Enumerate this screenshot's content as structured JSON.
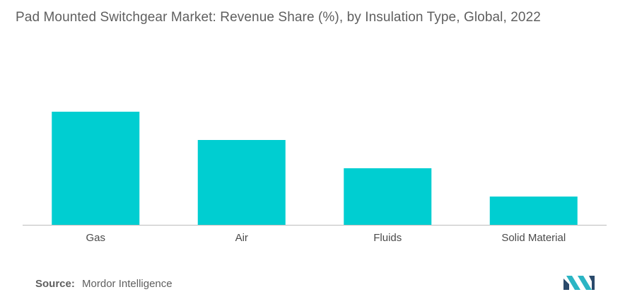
{
  "title": "Pad Mounted Switchgear Market: Revenue Share (%), by Insulation Type, Global, 2022",
  "source": {
    "label": "Source:",
    "value": "Mordor Intelligence"
  },
  "colors": {
    "bar": "#00CED1",
    "axis": "#bdbdbd",
    "title": "#5f5f5f",
    "logo_dark": "#2a4a6b",
    "logo_teal": "#2bb5c4"
  },
  "chart_data": {
    "type": "bar",
    "title": "Pad Mounted Switchgear Market: Revenue Share (%), by Insulation Type, Global, 2022",
    "categories": [
      "Gas",
      "Air",
      "Fluids",
      "Solid Material"
    ],
    "values": [
      40,
      30,
      20,
      10
    ],
    "xlabel": "",
    "ylabel": "",
    "ylim": [
      0,
      40
    ],
    "grid": false,
    "legend": "none"
  }
}
